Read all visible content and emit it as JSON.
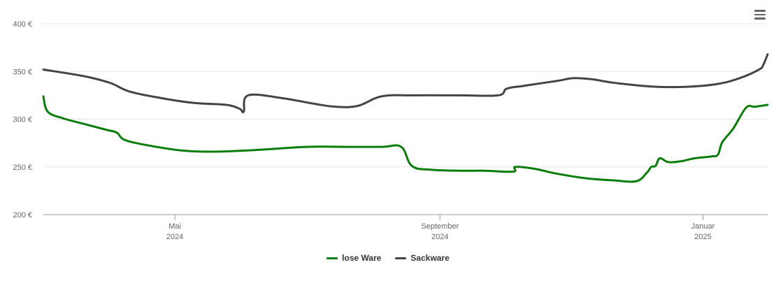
{
  "colors": {
    "lose_ware": "#0a7d0a",
    "sackware": "#444444",
    "grid": "#e6e6e6",
    "axis": "#999999"
  },
  "menu_icon": "hamburger-menu-icon",
  "chart_data": {
    "type": "line",
    "title": "",
    "xlabel": "",
    "ylabel": "",
    "ylim": [
      200,
      400
    ],
    "yticks": [
      {
        "value": 200,
        "label": "200 €"
      },
      {
        "value": 250,
        "label": "250 €"
      },
      {
        "value": 300,
        "label": "300 €"
      },
      {
        "value": 350,
        "label": "350 €"
      },
      {
        "value": 400,
        "label": "400 €"
      }
    ],
    "xlim": [
      "2024-03-01",
      "2025-01-31"
    ],
    "xticks": [
      {
        "date": "2024-05-01",
        "month": "Mai",
        "year": "2024"
      },
      {
        "date": "2024-09-01",
        "month": "September",
        "year": "2024"
      },
      {
        "date": "2025-01-01",
        "month": "Januar",
        "year": "2025"
      }
    ],
    "grid": true,
    "legend_position": "bottom",
    "series": [
      {
        "name": "lose Ware",
        "color": "#0a7d0a",
        "points": [
          [
            "2024-03-01",
            324
          ],
          [
            "2024-03-03",
            308
          ],
          [
            "2024-03-10",
            301
          ],
          [
            "2024-03-20",
            295
          ],
          [
            "2024-03-30",
            289
          ],
          [
            "2024-04-04",
            286
          ],
          [
            "2024-04-08",
            278
          ],
          [
            "2024-04-20",
            272
          ],
          [
            "2024-05-05",
            267
          ],
          [
            "2024-05-20",
            266
          ],
          [
            "2024-06-10",
            268
          ],
          [
            "2024-07-01",
            271
          ],
          [
            "2024-07-20",
            271
          ],
          [
            "2024-08-05",
            271
          ],
          [
            "2024-08-14",
            271
          ],
          [
            "2024-08-19",
            251
          ],
          [
            "2024-08-28",
            247
          ],
          [
            "2024-09-12",
            246
          ],
          [
            "2024-09-22",
            246
          ],
          [
            "2024-10-05",
            245
          ],
          [
            "2024-10-06",
            250
          ],
          [
            "2024-10-15",
            248
          ],
          [
            "2024-10-25",
            243
          ],
          [
            "2024-11-08",
            238
          ],
          [
            "2024-11-20",
            236
          ],
          [
            "2024-12-01",
            235
          ],
          [
            "2024-12-06",
            244
          ],
          [
            "2024-12-08",
            250
          ],
          [
            "2024-12-10",
            251
          ],
          [
            "2024-12-12",
            259
          ],
          [
            "2024-12-16",
            255
          ],
          [
            "2024-12-22",
            256
          ],
          [
            "2024-12-28",
            259
          ],
          [
            "2025-01-05",
            261
          ],
          [
            "2025-01-08",
            263
          ],
          [
            "2025-01-10",
            276
          ],
          [
            "2025-01-15",
            290
          ],
          [
            "2025-01-21",
            312
          ],
          [
            "2025-01-25",
            313
          ],
          [
            "2025-01-31",
            315
          ]
        ]
      },
      {
        "name": "Sackware",
        "color": "#444444",
        "points": [
          [
            "2024-03-01",
            352
          ],
          [
            "2024-03-20",
            345
          ],
          [
            "2024-04-01",
            338
          ],
          [
            "2024-04-10",
            329
          ],
          [
            "2024-04-25",
            322
          ],
          [
            "2024-05-10",
            317
          ],
          [
            "2024-05-25",
            315
          ],
          [
            "2024-05-31",
            311
          ],
          [
            "2024-06-02",
            308
          ],
          [
            "2024-06-04",
            325
          ],
          [
            "2024-06-20",
            322
          ],
          [
            "2024-07-05",
            316
          ],
          [
            "2024-07-15",
            313
          ],
          [
            "2024-07-25",
            314
          ],
          [
            "2024-08-05",
            324
          ],
          [
            "2024-08-20",
            325
          ],
          [
            "2024-09-10",
            325
          ],
          [
            "2024-09-28",
            325
          ],
          [
            "2024-10-02",
            332
          ],
          [
            "2024-10-10",
            335
          ],
          [
            "2024-10-25",
            340
          ],
          [
            "2024-11-02",
            343
          ],
          [
            "2024-11-10",
            342
          ],
          [
            "2024-11-18",
            339
          ],
          [
            "2024-11-25",
            337
          ],
          [
            "2024-12-10",
            334
          ],
          [
            "2024-12-25",
            334
          ],
          [
            "2025-01-08",
            337
          ],
          [
            "2025-01-18",
            343
          ],
          [
            "2025-01-27",
            352
          ],
          [
            "2025-01-29",
            357
          ],
          [
            "2025-01-31",
            368
          ]
        ]
      }
    ]
  }
}
